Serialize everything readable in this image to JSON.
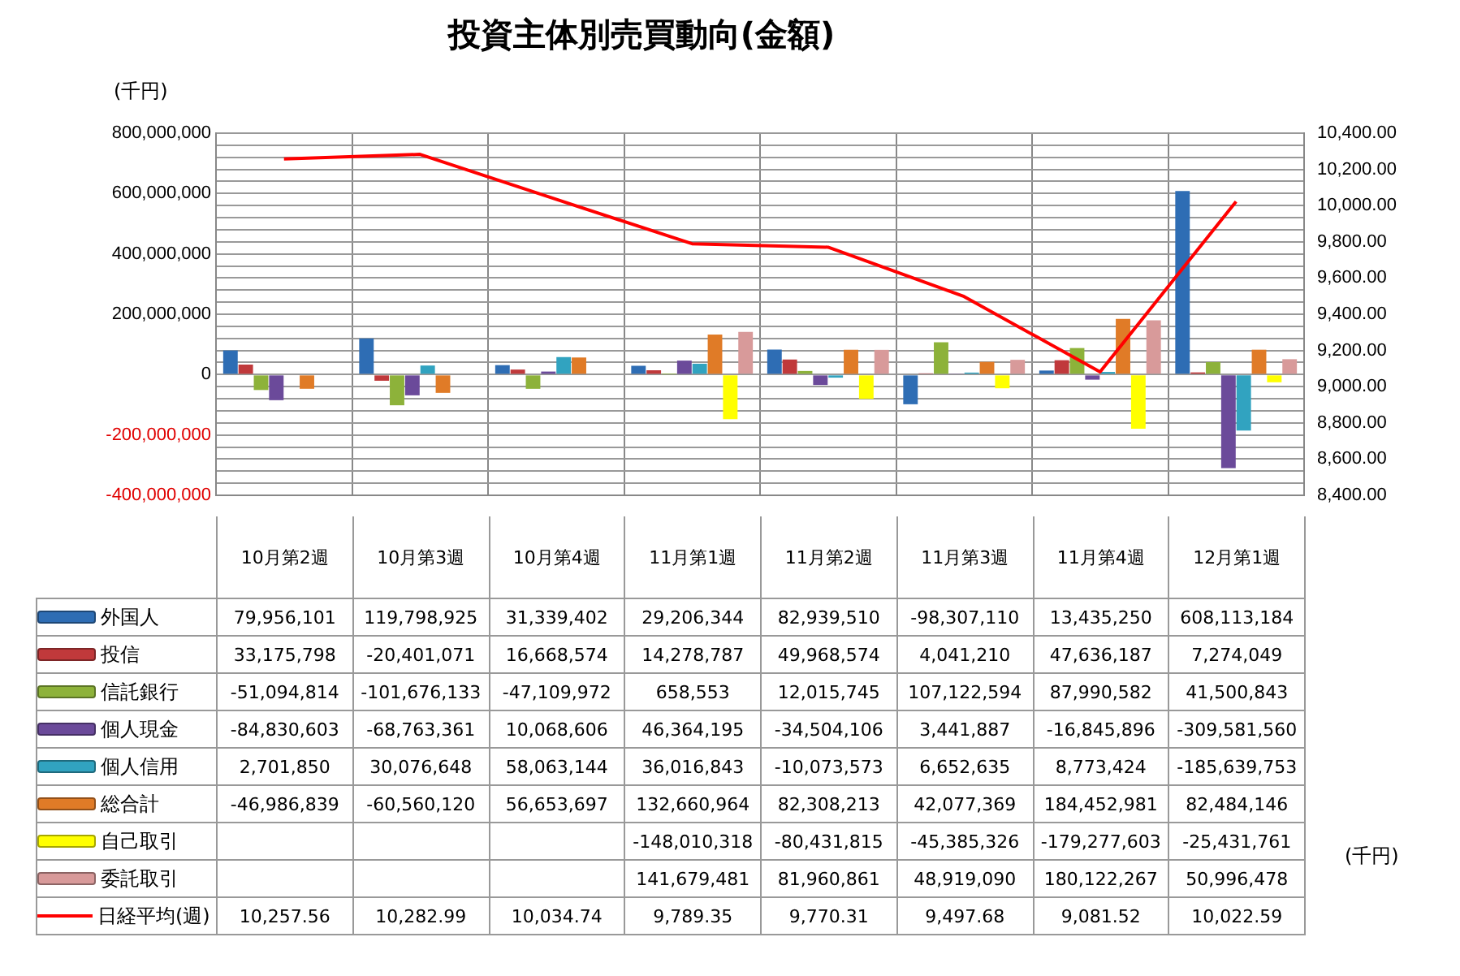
{
  "chart_data": {
    "type": "bar",
    "title": "投資主体別売買動向(金額)",
    "ylabel": "(千円)",
    "annotations": [
      "(千円)"
    ],
    "categories": [
      "10月第2週",
      "10月第3週",
      "10月第4週",
      "11月第1週",
      "11月第2週",
      "11月第3週",
      "11月第4週",
      "12月第1週"
    ],
    "series": [
      {
        "name": "外国人",
        "color": "#2e6db4",
        "values": [
          79956101,
          119798925,
          31339402,
          29206344,
          82939510,
          -98307110,
          13435250,
          608113184
        ],
        "value_labels": [
          "79,956,101",
          "119,798,925",
          "31,339,402",
          "29,206,344",
          "82,939,510",
          "-98,307,110",
          "13,435,250",
          "608,113,184"
        ]
      },
      {
        "name": "投信",
        "color": "#c0393b",
        "values": [
          33175798,
          -20401071,
          16668574,
          14278787,
          49968574,
          4041210,
          47636187,
          7274049
        ],
        "value_labels": [
          "33,175,798",
          "-20,401,071",
          "16,668,574",
          "14,278,787",
          "49,968,574",
          "4,041,210",
          "47,636,187",
          "7,274,049"
        ]
      },
      {
        "name": "信託銀行",
        "color": "#8db23a",
        "values": [
          -51094814,
          -101676133,
          -47109972,
          658553,
          12015745,
          107122594,
          87990582,
          41500843
        ],
        "value_labels": [
          "-51,094,814",
          "-101,676,133",
          "-47,109,972",
          "658,553",
          "12,015,745",
          "107,122,594",
          "87,990,582",
          "41,500,843"
        ]
      },
      {
        "name": "個人現金",
        "color": "#6b4a9a",
        "values": [
          -84830603,
          -68763361,
          10068606,
          46364195,
          -34504106,
          3441887,
          -16845896,
          -309581560
        ],
        "value_labels": [
          "-84,830,603",
          "-68,763,361",
          "10,068,606",
          "46,364,195",
          "-34,504,106",
          "3,441,887",
          "-16,845,896",
          "-309,581,560"
        ]
      },
      {
        "name": "個人信用",
        "color": "#31a3c0",
        "values": [
          2701850,
          30076648,
          58063144,
          36016843,
          -10073573,
          6652635,
          8773424,
          -185639753
        ],
        "value_labels": [
          "2,701,850",
          "30,076,648",
          "58,063,144",
          "36,016,843",
          "-10,073,573",
          "6,652,635",
          "8,773,424",
          "-185,639,753"
        ]
      },
      {
        "name": "総合計",
        "color": "#e07b27",
        "values": [
          -46986839,
          -60560120,
          56653697,
          132660964,
          82308213,
          42077369,
          184452981,
          82484146
        ],
        "value_labels": [
          "-46,986,839",
          "-60,560,120",
          "56,653,697",
          "132,660,964",
          "82,308,213",
          "42,077,369",
          "184,452,981",
          "82,484,146"
        ]
      },
      {
        "name": "自己取引",
        "color": "#ffff00",
        "values": [
          null,
          null,
          null,
          -148010318,
          -80431815,
          -45385326,
          -179277603,
          -25431761
        ],
        "value_labels": [
          null,
          null,
          null,
          "-148,010,318",
          "-80,431,815",
          "-45,385,326",
          "-179,277,603",
          "-25,431,761"
        ]
      },
      {
        "name": "委託取引",
        "color": "#d89a9a",
        "values": [
          null,
          null,
          null,
          141679481,
          81960861,
          48919090,
          180122267,
          50996478
        ],
        "value_labels": [
          null,
          null,
          null,
          "141,679,481",
          "81,960,861",
          "48,919,090",
          "180,122,267",
          "50,996,478"
        ]
      },
      {
        "name": "日経平均(週)",
        "color": "#ff0000",
        "type": "line",
        "axis": "y2",
        "values": [
          10257.56,
          10282.99,
          10034.74,
          9789.35,
          9770.31,
          9497.68,
          9081.52,
          10022.59
        ],
        "value_labels": [
          "10,257.56",
          "10,282.99",
          "10,034.74",
          "9,789.35",
          "9,770.31",
          "9,497.68",
          "9,081.52",
          "10,022.59"
        ]
      }
    ],
    "ylim": [
      -400000000,
      800000000
    ],
    "yticks": [
      {
        "value": -400000000,
        "label": "-400,000,000"
      },
      {
        "value": -360000000,
        "label": null
      },
      {
        "value": -320000000,
        "label": null
      },
      {
        "value": -280000000,
        "label": null
      },
      {
        "value": -240000000,
        "label": null
      },
      {
        "value": -200000000,
        "label": "-200,000,000"
      },
      {
        "value": -160000000,
        "label": null
      },
      {
        "value": -120000000,
        "label": null
      },
      {
        "value": -80000000,
        "label": null
      },
      {
        "value": -40000000,
        "label": null
      },
      {
        "value": 0,
        "label": "0"
      },
      {
        "value": 40000000,
        "label": null
      },
      {
        "value": 80000000,
        "label": null
      },
      {
        "value": 120000000,
        "label": null
      },
      {
        "value": 160000000,
        "label": null
      },
      {
        "value": 200000000,
        "label": "200,000,000"
      },
      {
        "value": 240000000,
        "label": null
      },
      {
        "value": 280000000,
        "label": null
      },
      {
        "value": 320000000,
        "label": null
      },
      {
        "value": 360000000,
        "label": null
      },
      {
        "value": 400000000,
        "label": "400,000,000"
      },
      {
        "value": 440000000,
        "label": null
      },
      {
        "value": 480000000,
        "label": null
      },
      {
        "value": 520000000,
        "label": null
      },
      {
        "value": 560000000,
        "label": null
      },
      {
        "value": 600000000,
        "label": "600,000,000"
      },
      {
        "value": 640000000,
        "label": null
      },
      {
        "value": 680000000,
        "label": null
      },
      {
        "value": 720000000,
        "label": null
      },
      {
        "value": 760000000,
        "label": null
      },
      {
        "value": 800000000,
        "label": "800,000,000"
      }
    ],
    "y2lim": [
      8400,
      10400
    ],
    "y2ticks": [
      {
        "value": 8400,
        "label": "8,400.00"
      },
      {
        "value": 8600,
        "label": "8,600.00"
      },
      {
        "value": 8800,
        "label": "8,800.00"
      },
      {
        "value": 9000,
        "label": "9,000.00"
      },
      {
        "value": 9200,
        "label": "9,200.00"
      },
      {
        "value": 9400,
        "label": "9,400.00"
      },
      {
        "value": 9600,
        "label": "9,600.00"
      },
      {
        "value": 9800,
        "label": "9,800.00"
      },
      {
        "value": 10000,
        "label": "10,000.00"
      },
      {
        "value": 10200,
        "label": "10,200.00"
      },
      {
        "value": 10400,
        "label": "10,400.00"
      }
    ],
    "grid": true,
    "legend": "bottom",
    "marker": "none",
    "line_style": "solid"
  }
}
